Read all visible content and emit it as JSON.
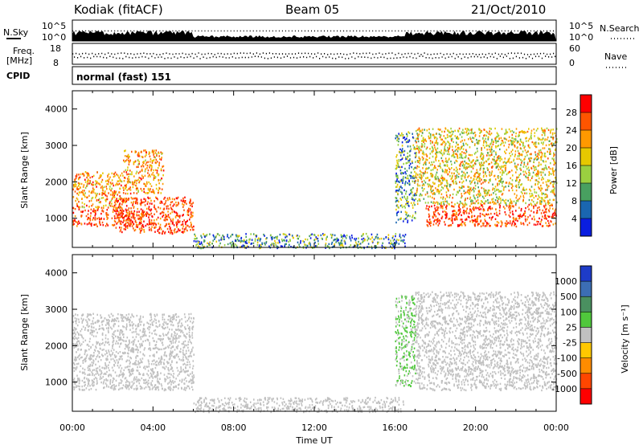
{
  "header": {
    "station": "Kodiak (fitACF)",
    "beam": "Beam 05",
    "date": "21/Oct/2010"
  },
  "params_panel": {
    "nsky_label": "N.Sky",
    "nsearch_label": "N.Search",
    "freq_label": "Freq.",
    "freq_unit": "[MHz]",
    "nave_label": "Nave",
    "cpid_label": "CPID",
    "cpid_value": "normal (fast) 151",
    "noise_ticks_left": [
      "10^5",
      "10^0"
    ],
    "noise_ticks_right": [
      "10^5",
      "10^0"
    ],
    "freq_ticks": [
      "18",
      "8"
    ],
    "nave_ticks": [
      "60",
      "0"
    ]
  },
  "chart_data": [
    {
      "type": "heatmap",
      "name": "power",
      "ylabel": "Slant Range [km]",
      "ylim": [
        200,
        4500
      ],
      "yticks": [
        1000,
        2000,
        3000,
        4000
      ],
      "xlim": [
        0,
        24
      ],
      "colorbar": {
        "label": "Power [dB]",
        "ticks": [
          "28",
          "24",
          "20",
          "16",
          "12",
          "8",
          "4"
        ],
        "colors": [
          "#ff0000",
          "#ff5500",
          "#ff9900",
          "#e6c800",
          "#9ad040",
          "#48a060",
          "#1a66b0",
          "#0a1ee0"
        ]
      },
      "regions": [
        {
          "t0": 0.0,
          "t1": 3.5,
          "r0": 800,
          "r1": 1300,
          "level": "high"
        },
        {
          "t0": 0.0,
          "t1": 2.5,
          "r0": 1300,
          "r1": 2300,
          "level": "medium-high"
        },
        {
          "t0": 2.5,
          "t1": 4.5,
          "r0": 1700,
          "r1": 2900,
          "level": "medium-high"
        },
        {
          "t0": 2.0,
          "t1": 6.0,
          "r0": 600,
          "r1": 1600,
          "level": "high"
        },
        {
          "t0": 6.0,
          "t1": 16.5,
          "r0": 200,
          "r1": 600,
          "level": "low-mixed"
        },
        {
          "t0": 16.0,
          "t1": 17.0,
          "r0": 900,
          "r1": 3400,
          "level": "low-mixed"
        },
        {
          "t0": 17.5,
          "t1": 24.0,
          "r0": 800,
          "r1": 1400,
          "level": "high"
        },
        {
          "t0": 17.0,
          "t1": 24.0,
          "r0": 1400,
          "r1": 3500,
          "level": "medium"
        }
      ]
    },
    {
      "type": "heatmap",
      "name": "velocity",
      "ylabel": "Slant Range [km]",
      "ylim": [
        200,
        4500
      ],
      "yticks": [
        1000,
        2000,
        3000,
        4000
      ],
      "xlim": [
        0,
        24
      ],
      "xlabel": "Time UT",
      "xticks": [
        "00:00",
        "04:00",
        "08:00",
        "12:00",
        "16:00",
        "20:00",
        "00:00"
      ],
      "colorbar": {
        "label": "Velocity [m s⁻¹]",
        "ticks": [
          "1000",
          "500",
          "100",
          "25",
          "-25",
          "-100",
          "-500",
          "-1000"
        ],
        "colors": [
          "#1e3cc8",
          "#3c6eb4",
          "#4a9060",
          "#50c83c",
          "#c0c0c0",
          "#ffc800",
          "#ff8c00",
          "#ff4600",
          "#ff0000"
        ]
      },
      "regions": [
        {
          "t0": 0.0,
          "t1": 6.0,
          "r0": 800,
          "r1": 2900,
          "level": "near-zero"
        },
        {
          "t0": 6.0,
          "t1": 16.5,
          "r0": 200,
          "r1": 600,
          "level": "near-zero"
        },
        {
          "t0": 16.0,
          "t1": 17.0,
          "r0": 900,
          "r1": 3400,
          "level": "positive-small"
        },
        {
          "t0": 17.0,
          "t1": 24.0,
          "r0": 800,
          "r1": 3500,
          "level": "near-zero"
        }
      ]
    }
  ]
}
